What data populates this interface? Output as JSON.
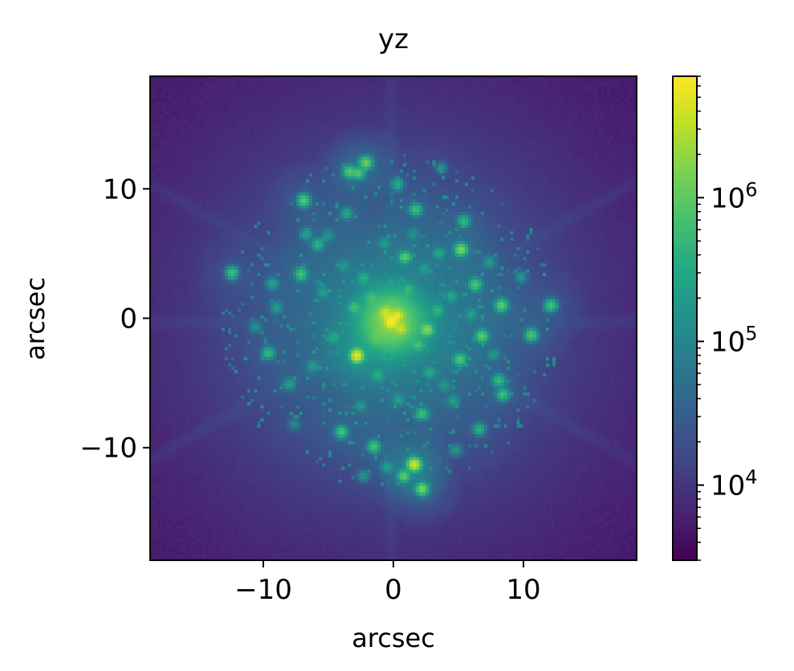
{
  "chart_data": {
    "type": "heatmap",
    "title": "yz",
    "xlabel": "arcsec",
    "ylabel": "arcsec",
    "xlim": [
      -18.7,
      18.7
    ],
    "ylim": [
      -18.7,
      18.7
    ],
    "xticks": [
      {
        "value": -10,
        "label": "−10"
      },
      {
        "value": 0,
        "label": "0"
      },
      {
        "value": 10,
        "label": "10"
      }
    ],
    "yticks": [
      {
        "value": 10,
        "label": "10"
      },
      {
        "value": 0,
        "label": "0"
      },
      {
        "value": -10,
        "label": "−10"
      }
    ],
    "colorbar": {
      "scale": "log",
      "colormap": "viridis",
      "range": [
        3000,
        7000000
      ],
      "ticks": [
        {
          "value": 10000,
          "base": "10",
          "exp": "4"
        },
        {
          "value": 100000,
          "base": "10",
          "exp": "5"
        },
        {
          "value": 1000000,
          "base": "10",
          "exp": "6"
        }
      ]
    },
    "background_value": 4000,
    "core": {
      "x": -0.2,
      "y": -0.3,
      "peak": 7000000
    },
    "diffraction_spikes_deg": [
      0,
      30,
      90,
      150
    ],
    "sources": [
      {
        "x": -0.2,
        "y": -0.3,
        "v": 7000000
      },
      {
        "x": 0.3,
        "y": 0.2,
        "v": 4000000
      },
      {
        "x": -0.6,
        "y": 0.4,
        "v": 3000000
      },
      {
        "x": 0.6,
        "y": -0.8,
        "v": 2500000
      },
      {
        "x": -2.8,
        "y": -2.9,
        "v": 5000000
      },
      {
        "x": 1.6,
        "y": -11.3,
        "v": 4000000
      },
      {
        "x": 2.2,
        "y": -13.2,
        "v": 1500000
      },
      {
        "x": 0.8,
        "y": -12.2,
        "v": 1000000
      },
      {
        "x": -2.1,
        "y": 12.0,
        "v": 1200000
      },
      {
        "x": -3.4,
        "y": 11.3,
        "v": 800000
      },
      {
        "x": -2.7,
        "y": 11.2,
        "v": 800000
      },
      {
        "x": -6.9,
        "y": 9.1,
        "v": 900000
      },
      {
        "x": 1.7,
        "y": 8.4,
        "v": 600000
      },
      {
        "x": 5.4,
        "y": 7.5,
        "v": 500000
      },
      {
        "x": -5.8,
        "y": 5.7,
        "v": 400000
      },
      {
        "x": 5.2,
        "y": 5.3,
        "v": 1500000
      },
      {
        "x": 0.9,
        "y": 4.7,
        "v": 900000
      },
      {
        "x": -7.1,
        "y": 3.4,
        "v": 700000
      },
      {
        "x": -12.4,
        "y": 3.5,
        "v": 600000
      },
      {
        "x": 6.3,
        "y": 2.6,
        "v": 800000
      },
      {
        "x": 8.3,
        "y": 1.0,
        "v": 1000000
      },
      {
        "x": 12.1,
        "y": 1.0,
        "v": 700000
      },
      {
        "x": 2.6,
        "y": -0.9,
        "v": 1500000
      },
      {
        "x": 6.8,
        "y": -1.4,
        "v": 1000000
      },
      {
        "x": 10.6,
        "y": -1.3,
        "v": 800000
      },
      {
        "x": 5.1,
        "y": -3.2,
        "v": 800000
      },
      {
        "x": -9.6,
        "y": -2.7,
        "v": 500000
      },
      {
        "x": 8.1,
        "y": -4.8,
        "v": 500000
      },
      {
        "x": 8.4,
        "y": -5.9,
        "v": 600000
      },
      {
        "x": 2.2,
        "y": -7.4,
        "v": 600000
      },
      {
        "x": -4.0,
        "y": -8.8,
        "v": 700000
      },
      {
        "x": -1.5,
        "y": -9.9,
        "v": 700000
      },
      {
        "x": 6.6,
        "y": -8.6,
        "v": 400000
      },
      {
        "x": -3.6,
        "y": 8.1,
        "v": 300000
      },
      {
        "x": 0.3,
        "y": 10.3,
        "v": 300000
      },
      {
        "x": -6.7,
        "y": 6.5,
        "v": 250000
      },
      {
        "x": 3.5,
        "y": 5.0,
        "v": 250000
      },
      {
        "x": -2.3,
        "y": 3.1,
        "v": 300000
      },
      {
        "x": 3.4,
        "y": 0.6,
        "v": 400000
      },
      {
        "x": -4.6,
        "y": -1.5,
        "v": 250000
      },
      {
        "x": -1.2,
        "y": -4.4,
        "v": 300000
      },
      {
        "x": 2.8,
        "y": -4.2,
        "v": 250000
      },
      {
        "x": -8.0,
        "y": -5.1,
        "v": 200000
      },
      {
        "x": 4.6,
        "y": -6.4,
        "v": 200000
      },
      {
        "x": -0.5,
        "y": -11.5,
        "v": 200000
      },
      {
        "x": -9.0,
        "y": 0.8,
        "v": 200000
      },
      {
        "x": -9.3,
        "y": 2.7,
        "v": 250000
      },
      {
        "x": 4.5,
        "y": 1.7,
        "v": 200000
      },
      {
        "x": -5.4,
        "y": 2.0,
        "v": 200000
      },
      {
        "x": 1.2,
        "y": 2.2,
        "v": 300000
      },
      {
        "x": -1.7,
        "y": 1.6,
        "v": 350000
      },
      {
        "x": -3.0,
        "y": 0.8,
        "v": 500000
      },
      {
        "x": 1.9,
        "y": -2.1,
        "v": 450000
      },
      {
        "x": -1.4,
        "y": -1.6,
        "v": 400000
      },
      {
        "x": -5.0,
        "y": 6.4,
        "v": 150000
      },
      {
        "x": 4.8,
        "y": -10.2,
        "v": 150000
      },
      {
        "x": -2.3,
        "y": -12.2,
        "v": 150000
      },
      {
        "x": 7.4,
        "y": 4.3,
        "v": 180000
      },
      {
        "x": 9.8,
        "y": 3.2,
        "v": 150000
      },
      {
        "x": -10.6,
        "y": -0.7,
        "v": 120000
      },
      {
        "x": 3.7,
        "y": 11.6,
        "v": 120000
      },
      {
        "x": -7.6,
        "y": -8.2,
        "v": 100000
      },
      {
        "x": 1.5,
        "y": 6.5,
        "v": 120000
      },
      {
        "x": -3.8,
        "y": 4.0,
        "v": 150000
      },
      {
        "x": 3.9,
        "y": -5.2,
        "v": 150000
      },
      {
        "x": 0.4,
        "y": -6.3,
        "v": 200000
      },
      {
        "x": -2.5,
        "y": -6.8,
        "v": 150000
      },
      {
        "x": 6.0,
        "y": 0.3,
        "v": 200000
      },
      {
        "x": -6.2,
        "y": -3.7,
        "v": 180000
      },
      {
        "x": 7.7,
        "y": -2.8,
        "v": 150000
      },
      {
        "x": 2.4,
        "y": 3.8,
        "v": 180000
      },
      {
        "x": -0.7,
        "y": 5.8,
        "v": 160000
      }
    ]
  }
}
